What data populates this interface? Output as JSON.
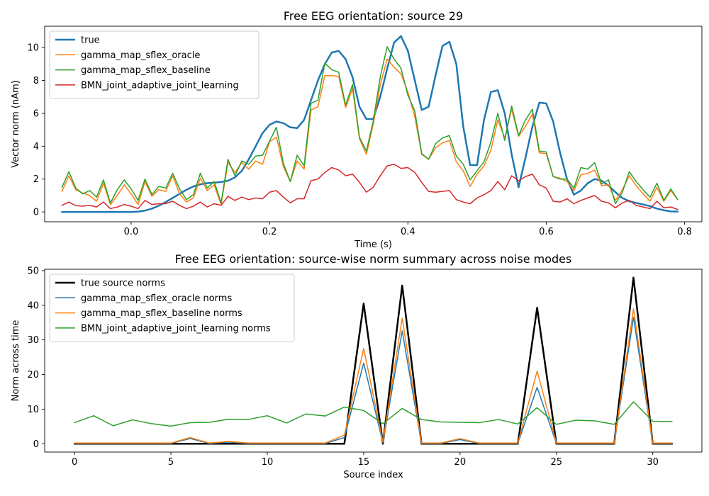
{
  "chart_data": [
    {
      "type": "line",
      "title": "Free EEG orientation: source 29",
      "xlabel": "Time (s)",
      "ylabel": "Vector norm (nAm)",
      "xlim": [
        -0.125,
        0.825
      ],
      "ylim": [
        -0.6,
        11.3
      ],
      "xticks": [
        0.0,
        0.2,
        0.4,
        0.6,
        0.8
      ],
      "xtick_labels": [
        "0.0",
        "0.2",
        "0.4",
        "0.6",
        "0.8"
      ],
      "yticks": [
        0,
        2,
        4,
        6,
        8,
        10
      ],
      "ytick_labels": [
        "0",
        "2",
        "4",
        "6",
        "8",
        "10"
      ],
      "grid": false,
      "legend_position": "top-left",
      "x": [
        -0.1,
        -0.09,
        -0.08,
        -0.07,
        -0.06,
        -0.05,
        -0.04,
        -0.03,
        -0.02,
        -0.01,
        0.0,
        0.01,
        0.02,
        0.03,
        0.04,
        0.05,
        0.06,
        0.07,
        0.08,
        0.09,
        0.1,
        0.11,
        0.12,
        0.13,
        0.14,
        0.15,
        0.16,
        0.17,
        0.18,
        0.19,
        0.2,
        0.21,
        0.22,
        0.23,
        0.24,
        0.25,
        0.26,
        0.27,
        0.28,
        0.29,
        0.3,
        0.31,
        0.32,
        0.33,
        0.34,
        0.35,
        0.36,
        0.37,
        0.38,
        0.39,
        0.4,
        0.41,
        0.42,
        0.43,
        0.44,
        0.45,
        0.46,
        0.47,
        0.48,
        0.49,
        0.5,
        0.51,
        0.52,
        0.53,
        0.54,
        0.55,
        0.56,
        0.57,
        0.58,
        0.59,
        0.6,
        0.61,
        0.62,
        0.63,
        0.64,
        0.65,
        0.66,
        0.67,
        0.68,
        0.69,
        0.7,
        0.71,
        0.72,
        0.73,
        0.74,
        0.75,
        0.76,
        0.77,
        0.78,
        0.79
      ],
      "series": [
        {
          "name": "true",
          "color": "#1f77b4",
          "width": 2.5,
          "values": [
            0,
            0,
            0,
            0,
            0,
            0,
            0,
            0,
            0,
            0,
            0,
            0.02,
            0.08,
            0.2,
            0.38,
            0.6,
            0.85,
            1.1,
            1.35,
            1.55,
            1.68,
            1.75,
            1.78,
            1.82,
            1.9,
            2.1,
            2.5,
            3.2,
            4.0,
            4.8,
            5.3,
            5.5,
            5.4,
            5.15,
            5.1,
            5.6,
            6.8,
            8.0,
            9.0,
            9.7,
            9.8,
            9.3,
            8.2,
            6.4,
            5.65,
            5.65,
            7.0,
            8.7,
            10.3,
            10.7,
            9.8,
            8.0,
            6.2,
            6.4,
            8.3,
            10.1,
            10.35,
            9.0,
            5.2,
            2.85,
            2.85,
            5.6,
            7.3,
            7.4,
            6.0,
            3.5,
            1.5,
            3.3,
            5.2,
            6.65,
            6.6,
            5.5,
            3.6,
            2.0,
            1.05,
            1.3,
            1.75,
            2.0,
            1.9,
            1.6,
            1.2,
            0.85,
            0.65,
            0.55,
            0.45,
            0.35,
            0.2,
            0.1,
            0.03,
            0.02
          ]
        },
        {
          "name": "gamma_map_sflex_oracle",
          "color": "#ff7f0e",
          "width": 1.5,
          "values": [
            1.25,
            2.2,
            1.35,
            1.15,
            1.0,
            0.65,
            1.75,
            0.45,
            1.0,
            1.65,
            1.1,
            0.45,
            1.85,
            0.95,
            1.35,
            1.25,
            2.2,
            1.1,
            0.6,
            0.85,
            2.05,
            1.3,
            1.65,
            0.45,
            3.0,
            2.4,
            3.0,
            2.6,
            3.1,
            2.9,
            4.25,
            4.55,
            2.75,
            1.85,
            3.1,
            2.6,
            6.2,
            6.4,
            8.3,
            8.3,
            8.25,
            6.35,
            7.5,
            4.45,
            3.5,
            5.35,
            7.7,
            9.3,
            8.8,
            8.4,
            7.3,
            5.8,
            3.5,
            3.2,
            3.9,
            4.2,
            4.35,
            3.05,
            2.5,
            1.55,
            2.3,
            2.8,
            3.75,
            5.6,
            4.5,
            6.25,
            4.6,
            5.2,
            5.95,
            3.6,
            3.55,
            2.15,
            2.05,
            1.85,
            1.3,
            2.25,
            2.35,
            2.55,
            1.6,
            1.65,
            0.7,
            1.35,
            2.2,
            1.6,
            1.1,
            0.65,
            1.5,
            0.65,
            1.3,
            0.75
          ]
        },
        {
          "name": "gamma_map_sflex_baseline",
          "color": "#2ca02c",
          "width": 1.5,
          "values": [
            1.5,
            2.45,
            1.45,
            1.1,
            1.3,
            0.9,
            1.95,
            0.55,
            1.35,
            1.95,
            1.4,
            0.7,
            2.0,
            1.05,
            1.55,
            1.45,
            2.35,
            1.4,
            0.75,
            1.05,
            2.35,
            1.45,
            1.85,
            0.55,
            3.2,
            2.2,
            3.1,
            2.9,
            3.4,
            3.45,
            4.3,
            5.15,
            2.95,
            1.85,
            3.45,
            2.8,
            6.6,
            6.8,
            9.05,
            8.65,
            8.5,
            6.5,
            7.75,
            4.55,
            3.7,
            5.55,
            8.2,
            10.05,
            9.3,
            8.75,
            7.1,
            6.15,
            3.55,
            3.2,
            4.15,
            4.5,
            4.65,
            3.4,
            2.9,
            1.95,
            2.5,
            3.05,
            4.25,
            6.0,
            4.35,
            6.45,
            4.65,
            5.6,
            6.25,
            3.7,
            3.65,
            2.15,
            2.0,
            2.0,
            1.45,
            2.7,
            2.6,
            3.0,
            1.7,
            1.95,
            0.5,
            1.2,
            2.45,
            1.85,
            1.35,
            0.9,
            1.75,
            0.7,
            1.4,
            0.75
          ]
        },
        {
          "name": "BMN_joint_adaptive_joint_learning",
          "color": "#d62728",
          "width": 1.5,
          "values": [
            0.4,
            0.6,
            0.38,
            0.35,
            0.4,
            0.3,
            0.6,
            0.2,
            0.3,
            0.45,
            0.35,
            0.2,
            0.7,
            0.45,
            0.5,
            0.5,
            0.65,
            0.4,
            0.2,
            0.35,
            0.6,
            0.3,
            0.5,
            0.4,
            0.95,
            0.7,
            0.9,
            0.75,
            0.85,
            0.8,
            1.2,
            1.3,
            0.9,
            0.55,
            0.8,
            0.8,
            1.9,
            2.0,
            2.4,
            2.7,
            2.55,
            2.2,
            2.3,
            1.8,
            1.2,
            1.5,
            2.2,
            2.8,
            2.9,
            2.65,
            2.7,
            2.4,
            1.8,
            1.25,
            1.2,
            1.25,
            1.3,
            0.75,
            0.6,
            0.5,
            0.85,
            1.05,
            1.3,
            1.85,
            1.35,
            2.2,
            1.9,
            2.15,
            2.3,
            1.65,
            1.45,
            0.65,
            0.6,
            0.8,
            0.5,
            0.7,
            0.85,
            1.0,
            0.65,
            0.55,
            0.25,
            0.55,
            0.7,
            0.4,
            0.3,
            0.2,
            0.65,
            0.25,
            0.3,
            0.15
          ]
        }
      ]
    },
    {
      "type": "line",
      "title": "Free EEG orientation: source-wise norm summary across noise modes",
      "xlabel": "Source index",
      "ylabel": "Norm across time",
      "xlim": [
        -1.55,
        32.55
      ],
      "ylim": [
        -2.4,
        50.4
      ],
      "xticks": [
        0,
        5,
        10,
        15,
        20,
        25,
        30
      ],
      "xtick_labels": [
        "0",
        "5",
        "10",
        "15",
        "20",
        "25",
        "30"
      ],
      "yticks": [
        0,
        10,
        20,
        30,
        40,
        50
      ],
      "ytick_labels": [
        "0",
        "10",
        "20",
        "30",
        "40",
        "50"
      ],
      "grid": false,
      "legend_position": "top-left",
      "x": [
        0,
        1,
        2,
        3,
        4,
        5,
        6,
        7,
        8,
        9,
        10,
        11,
        12,
        13,
        14,
        15,
        16,
        17,
        18,
        19,
        20,
        21,
        22,
        23,
        24,
        25,
        26,
        27,
        28,
        29,
        30,
        31
      ],
      "series": [
        {
          "name": "true source norms",
          "color": "#000000",
          "width": 2.5,
          "values": [
            0,
            0,
            0,
            0,
            0,
            0,
            0,
            0,
            0,
            0,
            0,
            0,
            0,
            0,
            0,
            40.5,
            0,
            45.7,
            0,
            0,
            0,
            0,
            0,
            0,
            39.3,
            0,
            0,
            0,
            0,
            48.0,
            0,
            0
          ]
        },
        {
          "name": "gamma_map_sflex_oracle norms",
          "color": "#1f77b4",
          "width": 1.5,
          "values": [
            0.1,
            0.1,
            0.1,
            0.1,
            0.1,
            0.1,
            1.5,
            0.1,
            0.5,
            0.1,
            0.1,
            0.1,
            0.1,
            0.1,
            1.8,
            23.3,
            0.3,
            32.6,
            0.1,
            0.1,
            1.2,
            0.1,
            0.1,
            0.1,
            16.3,
            0.1,
            0.1,
            0.1,
            0.1,
            36.5,
            0.1,
            0.1
          ]
        },
        {
          "name": "gamma_map_sflex_baseline norms",
          "color": "#ff7f0e",
          "width": 1.5,
          "values": [
            0.2,
            0.2,
            0.2,
            0.2,
            0.2,
            0.2,
            1.8,
            0.2,
            0.7,
            0.2,
            0.2,
            0.2,
            0.2,
            0.2,
            2.5,
            27.5,
            0.5,
            36.3,
            0.2,
            0.2,
            1.5,
            0.2,
            0.2,
            0.2,
            21.0,
            0.2,
            0.2,
            0.2,
            0.2,
            39.0,
            0.2,
            0.2
          ]
        },
        {
          "name": "BMN_joint_adaptive_joint_learning norms",
          "color": "#2ca02c",
          "width": 1.5,
          "values": [
            6.1,
            8.1,
            5.2,
            6.9,
            5.8,
            5.1,
            6.1,
            6.2,
            7.1,
            7.0,
            8.1,
            6.0,
            8.6,
            8.0,
            10.6,
            9.6,
            5.8,
            10.2,
            7.0,
            6.3,
            6.2,
            6.1,
            7.0,
            5.7,
            10.4,
            5.6,
            6.8,
            6.6,
            5.6,
            12.1,
            6.5,
            6.4
          ]
        }
      ]
    }
  ]
}
